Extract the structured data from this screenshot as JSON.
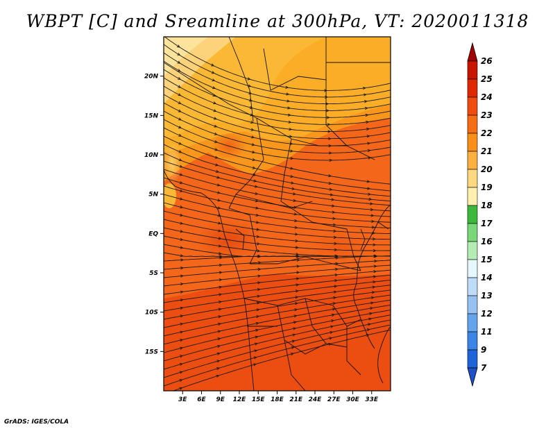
{
  "title": "WBPT [C] and Sreamline at 300hPa, VT: 2020011318",
  "footer": "GrADS: IGES/COLA",
  "map": {
    "region": "Central and Southern Africa",
    "lon_range": [
      0,
      36
    ],
    "lat_range": [
      -20,
      25
    ],
    "lon_ticks": [
      {
        "value": 3,
        "label": "3E"
      },
      {
        "value": 6,
        "label": "6E"
      },
      {
        "value": 9,
        "label": "9E"
      },
      {
        "value": 12,
        "label": "12E"
      },
      {
        "value": 15,
        "label": "15E"
      },
      {
        "value": 18,
        "label": "18E"
      },
      {
        "value": 21,
        "label": "21E"
      },
      {
        "value": 24,
        "label": "24E"
      },
      {
        "value": 27,
        "label": "27E"
      },
      {
        "value": 30,
        "label": "30E"
      },
      {
        "value": 33,
        "label": "33E"
      }
    ],
    "lat_ticks": [
      {
        "value": 20,
        "label": "20N"
      },
      {
        "value": 15,
        "label": "15N"
      },
      {
        "value": 10,
        "label": "10N"
      },
      {
        "value": 5,
        "label": "5N"
      },
      {
        "value": 0,
        "label": "EQ"
      },
      {
        "value": -5,
        "label": "5S"
      },
      {
        "value": -10,
        "label": "10S"
      },
      {
        "value": -15,
        "label": "15S"
      }
    ]
  },
  "colorbar": {
    "levels": [
      {
        "label": "26",
        "color": "#a00000"
      },
      {
        "label": "25",
        "color": "#c81400"
      },
      {
        "label": "24",
        "color": "#e02800"
      },
      {
        "label": "23",
        "color": "#f04c10"
      },
      {
        "label": "22",
        "color": "#f66e14"
      },
      {
        "label": "21",
        "color": "#f98e18"
      },
      {
        "label": "20",
        "color": "#fbb040"
      },
      {
        "label": "19",
        "color": "#fcd880"
      },
      {
        "label": "18",
        "color": "#fff0b0"
      },
      {
        "label": "17",
        "color": "#3cb83c"
      },
      {
        "label": "16",
        "color": "#78d878"
      },
      {
        "label": "15",
        "color": "#b4ecb4"
      },
      {
        "label": "14",
        "color": "#e6f8ff"
      },
      {
        "label": "13",
        "color": "#bedcf8"
      },
      {
        "label": "12",
        "color": "#96c2f2"
      },
      {
        "label": "11",
        "color": "#64a4ec"
      },
      {
        "label": "9",
        "color": "#3c84e6"
      },
      {
        "label": "7",
        "color": "#1e64d8"
      }
    ],
    "bottom_arrow_color": "#1e50c8"
  }
}
